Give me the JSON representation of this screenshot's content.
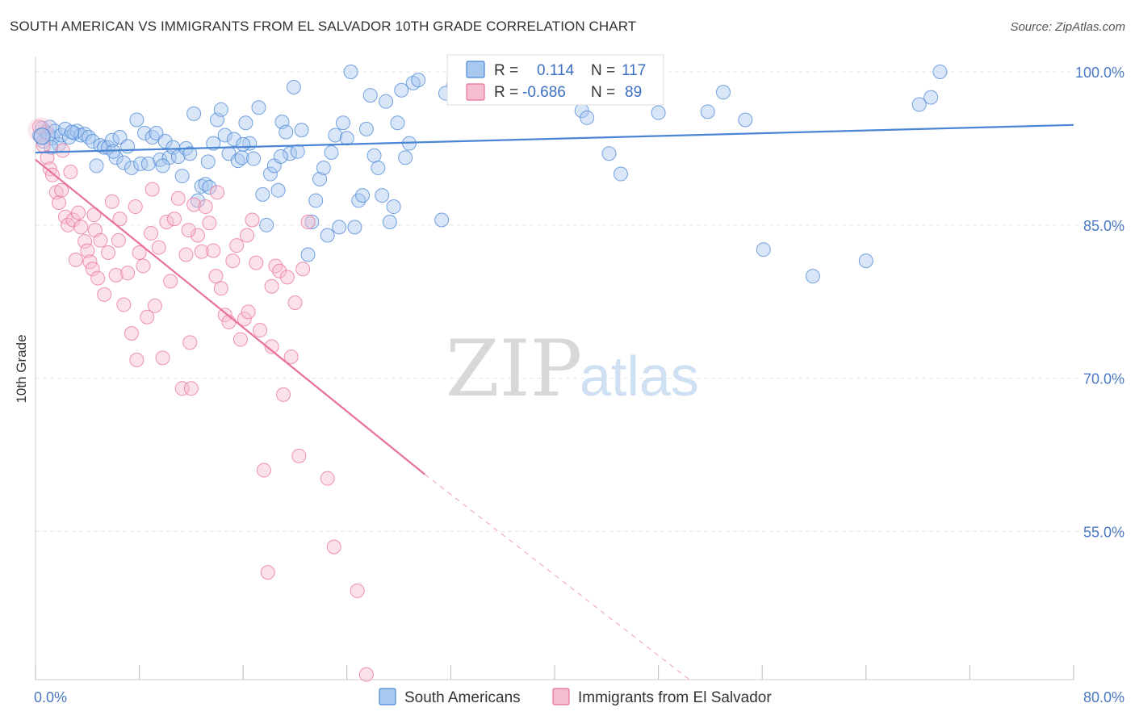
{
  "header": {
    "title": "SOUTH AMERICAN VS IMMIGRANTS FROM EL SALVADOR 10TH GRADE CORRELATION CHART",
    "source": "Source: ZipAtlas.com"
  },
  "watermark": {
    "zip": "ZIP",
    "atlas": "atlas"
  },
  "colors": {
    "blue": "#4a86d4",
    "blue_fill": "#a9c8f0",
    "pink": "#e8709a",
    "pink_fill": "#f6bcd0",
    "tick_text": "#4a78c2",
    "grid": "#e6e6e6"
  },
  "stats": {
    "blue": {
      "r_label": "R =",
      "r_value": "0.114",
      "n_label": "N =",
      "n_value": "117"
    },
    "pink": {
      "r_label": "R =",
      "r_value": "-0.686",
      "n_label": "N =",
      "n_value": "89"
    }
  },
  "chart_data": {
    "type": "scatter",
    "xlabel": "",
    "ylabel": "10th Grade",
    "xlim": [
      0,
      80
    ],
    "ylim": [
      40.5,
      101.5
    ],
    "x_tick_labels": [
      {
        "value": 0,
        "label": "0.0%"
      },
      {
        "value": 80,
        "label": "80.0%"
      }
    ],
    "y_tick_labels": [
      {
        "value": 100,
        "label": "100.0%"
      },
      {
        "value": 85,
        "label": "85.0%"
      },
      {
        "value": 70,
        "label": "70.0%"
      },
      {
        "value": 55,
        "label": "55.0%"
      }
    ],
    "x_minor_ticks": [
      0,
      8,
      16,
      24,
      32,
      40,
      48,
      56,
      64,
      72,
      80
    ],
    "grid": true,
    "legend_position": "bottom-center",
    "series": [
      {
        "name": "South Americans",
        "color": "#4a86d4",
        "r": 0.114,
        "n": 117,
        "trend": {
          "x": [
            0,
            80
          ],
          "y": [
            92.1,
            94.8
          ]
        },
        "points": [
          [
            0.3,
            93.8
          ],
          [
            0.5,
            94.5
          ],
          [
            0.6,
            93.2
          ],
          [
            0.8,
            94.1
          ],
          [
            1.0,
            93.9
          ],
          [
            1.1,
            94.6
          ],
          [
            1.3,
            93.5
          ],
          [
            1.5,
            94.2
          ],
          [
            1.8,
            92.9
          ],
          [
            2.0,
            93.8
          ],
          [
            2.3,
            94.4
          ],
          [
            2.6,
            93.6
          ],
          [
            3.0,
            94.0
          ],
          [
            3.2,
            94.2
          ],
          [
            3.5,
            93.8
          ],
          [
            3.8,
            93.9
          ],
          [
            4.1,
            93.6
          ],
          [
            4.4,
            93.2
          ],
          [
            4.7,
            90.8
          ],
          [
            5.0,
            92.8
          ],
          [
            5.3,
            92.6
          ],
          [
            5.6,
            92.6
          ],
          [
            5.9,
            93.3
          ],
          [
            6.2,
            91.6
          ],
          [
            6.5,
            93.6
          ],
          [
            6.8,
            91.1
          ],
          [
            7.1,
            92.7
          ],
          [
            7.4,
            90.6
          ],
          [
            7.8,
            95.3
          ],
          [
            8.1,
            91.0
          ],
          [
            8.4,
            94.0
          ],
          [
            8.7,
            91.0
          ],
          [
            9.0,
            93.6
          ],
          [
            9.3,
            94.0
          ],
          [
            9.6,
            91.4
          ],
          [
            10.0,
            93.2
          ],
          [
            10.3,
            91.6
          ],
          [
            10.6,
            92.6
          ],
          [
            11.0,
            91.7
          ],
          [
            11.3,
            89.8
          ],
          [
            11.6,
            92.5
          ],
          [
            11.9,
            92.0
          ],
          [
            12.2,
            95.9
          ],
          [
            12.5,
            87.4
          ],
          [
            12.8,
            88.8
          ],
          [
            13.1,
            89.0
          ],
          [
            13.4,
            88.7
          ],
          [
            13.7,
            93.0
          ],
          [
            14.0,
            95.3
          ],
          [
            14.3,
            96.3
          ],
          [
            14.6,
            93.8
          ],
          [
            14.9,
            92.0
          ],
          [
            15.3,
            93.4
          ],
          [
            15.6,
            91.3
          ],
          [
            15.9,
            91.6
          ],
          [
            16.2,
            95.0
          ],
          [
            16.5,
            93.0
          ],
          [
            16.8,
            91.5
          ],
          [
            17.2,
            96.5
          ],
          [
            17.5,
            88.0
          ],
          [
            17.8,
            85.0
          ],
          [
            18.1,
            90.0
          ],
          [
            18.4,
            90.8
          ],
          [
            18.7,
            88.4
          ],
          [
            19.0,
            95.1
          ],
          [
            19.3,
            94.1
          ],
          [
            19.6,
            92.0
          ],
          [
            19.9,
            98.5
          ],
          [
            20.2,
            92.2
          ],
          [
            20.5,
            94.3
          ],
          [
            21.0,
            82.1
          ],
          [
            21.3,
            85.3
          ],
          [
            21.6,
            87.4
          ],
          [
            21.9,
            89.5
          ],
          [
            22.2,
            90.6
          ],
          [
            22.5,
            84.0
          ],
          [
            22.8,
            92.1
          ],
          [
            23.1,
            93.8
          ],
          [
            23.4,
            84.8
          ],
          [
            23.7,
            95.0
          ],
          [
            24.0,
            93.5
          ],
          [
            24.3,
            100.0
          ],
          [
            24.6,
            84.8
          ],
          [
            24.9,
            87.4
          ],
          [
            25.2,
            87.9
          ],
          [
            25.5,
            94.4
          ],
          [
            25.8,
            97.7
          ],
          [
            26.1,
            91.8
          ],
          [
            26.4,
            90.6
          ],
          [
            26.7,
            87.9
          ],
          [
            27.0,
            97.1
          ],
          [
            27.3,
            85.3
          ],
          [
            27.6,
            86.8
          ],
          [
            27.9,
            95.0
          ],
          [
            28.2,
            98.2
          ],
          [
            28.5,
            91.6
          ],
          [
            28.8,
            93.0
          ],
          [
            29.1,
            98.9
          ],
          [
            29.5,
            99.2
          ],
          [
            31.3,
            85.5
          ],
          [
            31.6,
            97.9
          ],
          [
            32.2,
            98.7
          ],
          [
            32.8,
            100.0
          ],
          [
            35.0,
            99.5
          ],
          [
            37.5,
            99.0
          ],
          [
            38.5,
            98.5
          ],
          [
            42.1,
            96.2
          ],
          [
            42.5,
            95.5
          ],
          [
            44.2,
            92.0
          ],
          [
            45.1,
            90.0
          ],
          [
            48.0,
            96.0
          ],
          [
            51.8,
            96.1
          ],
          [
            53.0,
            98.0
          ],
          [
            54.7,
            95.3
          ],
          [
            56.1,
            82.6
          ],
          [
            59.9,
            80.0
          ],
          [
            64.0,
            81.5
          ],
          [
            68.1,
            96.8
          ],
          [
            69.0,
            97.5
          ],
          [
            69.7,
            100.0
          ],
          [
            1.2,
            92.6
          ],
          [
            2.8,
            94.1
          ],
          [
            6.0,
            92.2
          ],
          [
            9.8,
            90.8
          ],
          [
            13.3,
            91.2
          ],
          [
            16.0,
            92.9
          ],
          [
            18.9,
            91.7
          ]
        ]
      },
      {
        "name": "Immigrants from El Salvador",
        "color": "#e8709a",
        "r": -0.686,
        "n": 89,
        "trend": {
          "x": [
            0,
            30
          ],
          "y": [
            91.4,
            60.6
          ]
        },
        "trend_dashed": {
          "x": [
            30,
            50.4
          ],
          "y": [
            60.6,
            40.5
          ]
        },
        "points": [
          [
            0.3,
            94.6
          ],
          [
            0.6,
            92.8
          ],
          [
            0.9,
            91.6
          ],
          [
            1.1,
            90.5
          ],
          [
            1.3,
            89.9
          ],
          [
            1.6,
            88.2
          ],
          [
            1.8,
            87.2
          ],
          [
            2.0,
            88.4
          ],
          [
            2.3,
            85.8
          ],
          [
            2.5,
            85.0
          ],
          [
            2.7,
            90.2
          ],
          [
            2.9,
            85.5
          ],
          [
            3.1,
            81.6
          ],
          [
            3.3,
            86.2
          ],
          [
            3.5,
            84.8
          ],
          [
            3.8,
            83.4
          ],
          [
            4.0,
            82.5
          ],
          [
            4.2,
            81.4
          ],
          [
            4.4,
            80.7
          ],
          [
            4.6,
            84.5
          ],
          [
            4.8,
            79.8
          ],
          [
            5.0,
            83.5
          ],
          [
            5.3,
            78.2
          ],
          [
            5.6,
            82.3
          ],
          [
            5.9,
            87.3
          ],
          [
            6.2,
            80.1
          ],
          [
            6.5,
            85.6
          ],
          [
            6.8,
            77.2
          ],
          [
            7.1,
            80.3
          ],
          [
            7.4,
            74.4
          ],
          [
            7.7,
            86.8
          ],
          [
            8.0,
            82.3
          ],
          [
            8.3,
            81.0
          ],
          [
            8.6,
            76.0
          ],
          [
            8.9,
            84.2
          ],
          [
            9.2,
            77.1
          ],
          [
            9.5,
            82.8
          ],
          [
            9.8,
            72.0
          ],
          [
            10.1,
            85.3
          ],
          [
            10.4,
            79.5
          ],
          [
            10.7,
            85.6
          ],
          [
            11.0,
            87.6
          ],
          [
            11.3,
            69.0
          ],
          [
            11.6,
            82.1
          ],
          [
            11.9,
            73.5
          ],
          [
            12.2,
            87.0
          ],
          [
            12.5,
            84.0
          ],
          [
            12.8,
            82.4
          ],
          [
            13.1,
            86.8
          ],
          [
            13.4,
            85.2
          ],
          [
            13.7,
            82.5
          ],
          [
            14.0,
            88.2
          ],
          [
            14.3,
            78.8
          ],
          [
            14.6,
            76.2
          ],
          [
            14.9,
            75.5
          ],
          [
            15.2,
            81.5
          ],
          [
            15.5,
            83.0
          ],
          [
            15.8,
            73.8
          ],
          [
            16.1,
            75.8
          ],
          [
            16.4,
            76.5
          ],
          [
            16.7,
            85.5
          ],
          [
            17.0,
            81.3
          ],
          [
            17.3,
            74.7
          ],
          [
            17.6,
            61.0
          ],
          [
            17.9,
            51.0
          ],
          [
            18.2,
            73.1
          ],
          [
            18.5,
            81.0
          ],
          [
            18.8,
            80.5
          ],
          [
            19.1,
            68.4
          ],
          [
            19.4,
            79.9
          ],
          [
            19.7,
            72.1
          ],
          [
            20.0,
            77.4
          ],
          [
            20.3,
            62.4
          ],
          [
            20.6,
            80.7
          ],
          [
            21.0,
            85.3
          ],
          [
            22.5,
            60.2
          ],
          [
            23.0,
            53.5
          ],
          [
            24.8,
            49.2
          ],
          [
            25.5,
            41.0
          ],
          [
            2.1,
            92.3
          ],
          [
            4.5,
            86.0
          ],
          [
            6.4,
            83.5
          ],
          [
            9.0,
            88.5
          ],
          [
            11.8,
            84.5
          ],
          [
            13.9,
            80.0
          ],
          [
            16.3,
            84.0
          ],
          [
            18.2,
            79.0
          ],
          [
            12.0,
            69.0
          ],
          [
            7.8,
            71.8
          ]
        ]
      }
    ]
  }
}
